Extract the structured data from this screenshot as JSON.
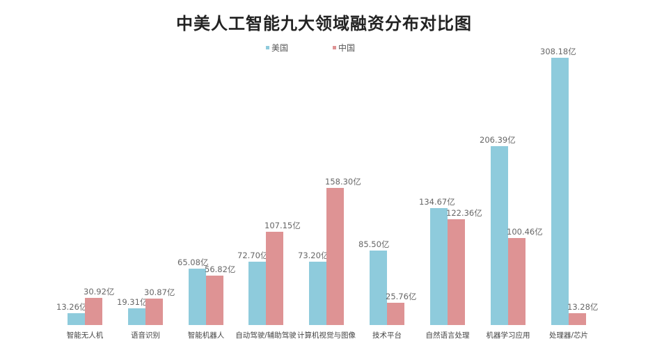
{
  "title": "中美人工智能九大领域融资分布对比图",
  "legend": [
    {
      "label": "美国",
      "color": "#8ecbdc"
    },
    {
      "label": "中国",
      "color": "#de9394"
    }
  ],
  "chart_data": {
    "type": "bar",
    "title": "中美人工智能九大领域融资分布对比图",
    "xlabel": "",
    "ylabel": "",
    "unit": "亿",
    "grid": false,
    "legend_position": "top",
    "categories": [
      "智能无人机",
      "语音识别",
      "智能机器人",
      "自动驾驶/辅助驾驶",
      "计算机视觉与图像",
      "技术平台",
      "自然语言处理",
      "机器学习应用",
      "处理器/芯片"
    ],
    "series": [
      {
        "name": "美国",
        "color": "#8ecbdc",
        "values": [
          13.26,
          19.31,
          65.08,
          72.7,
          73.2,
          85.5,
          134.67,
          206.39,
          308.18
        ],
        "labels": [
          "13.26亿",
          "19.31亿",
          "65.08亿",
          "72.70亿",
          "73.20亿",
          "85.50亿",
          "134.67亿",
          "206.39亿",
          "308.18亿"
        ]
      },
      {
        "name": "中国",
        "color": "#de9394",
        "values": [
          30.92,
          30.87,
          56.82,
          107.15,
          158.3,
          25.76,
          122.36,
          100.46,
          13.28
        ],
        "labels": [
          "30.92亿",
          "30.87亿",
          "56.82亿",
          "107.15亿",
          "158.30亿",
          "25.76亿",
          "122.36亿",
          "100.46亿",
          "13.28亿"
        ]
      }
    ]
  }
}
